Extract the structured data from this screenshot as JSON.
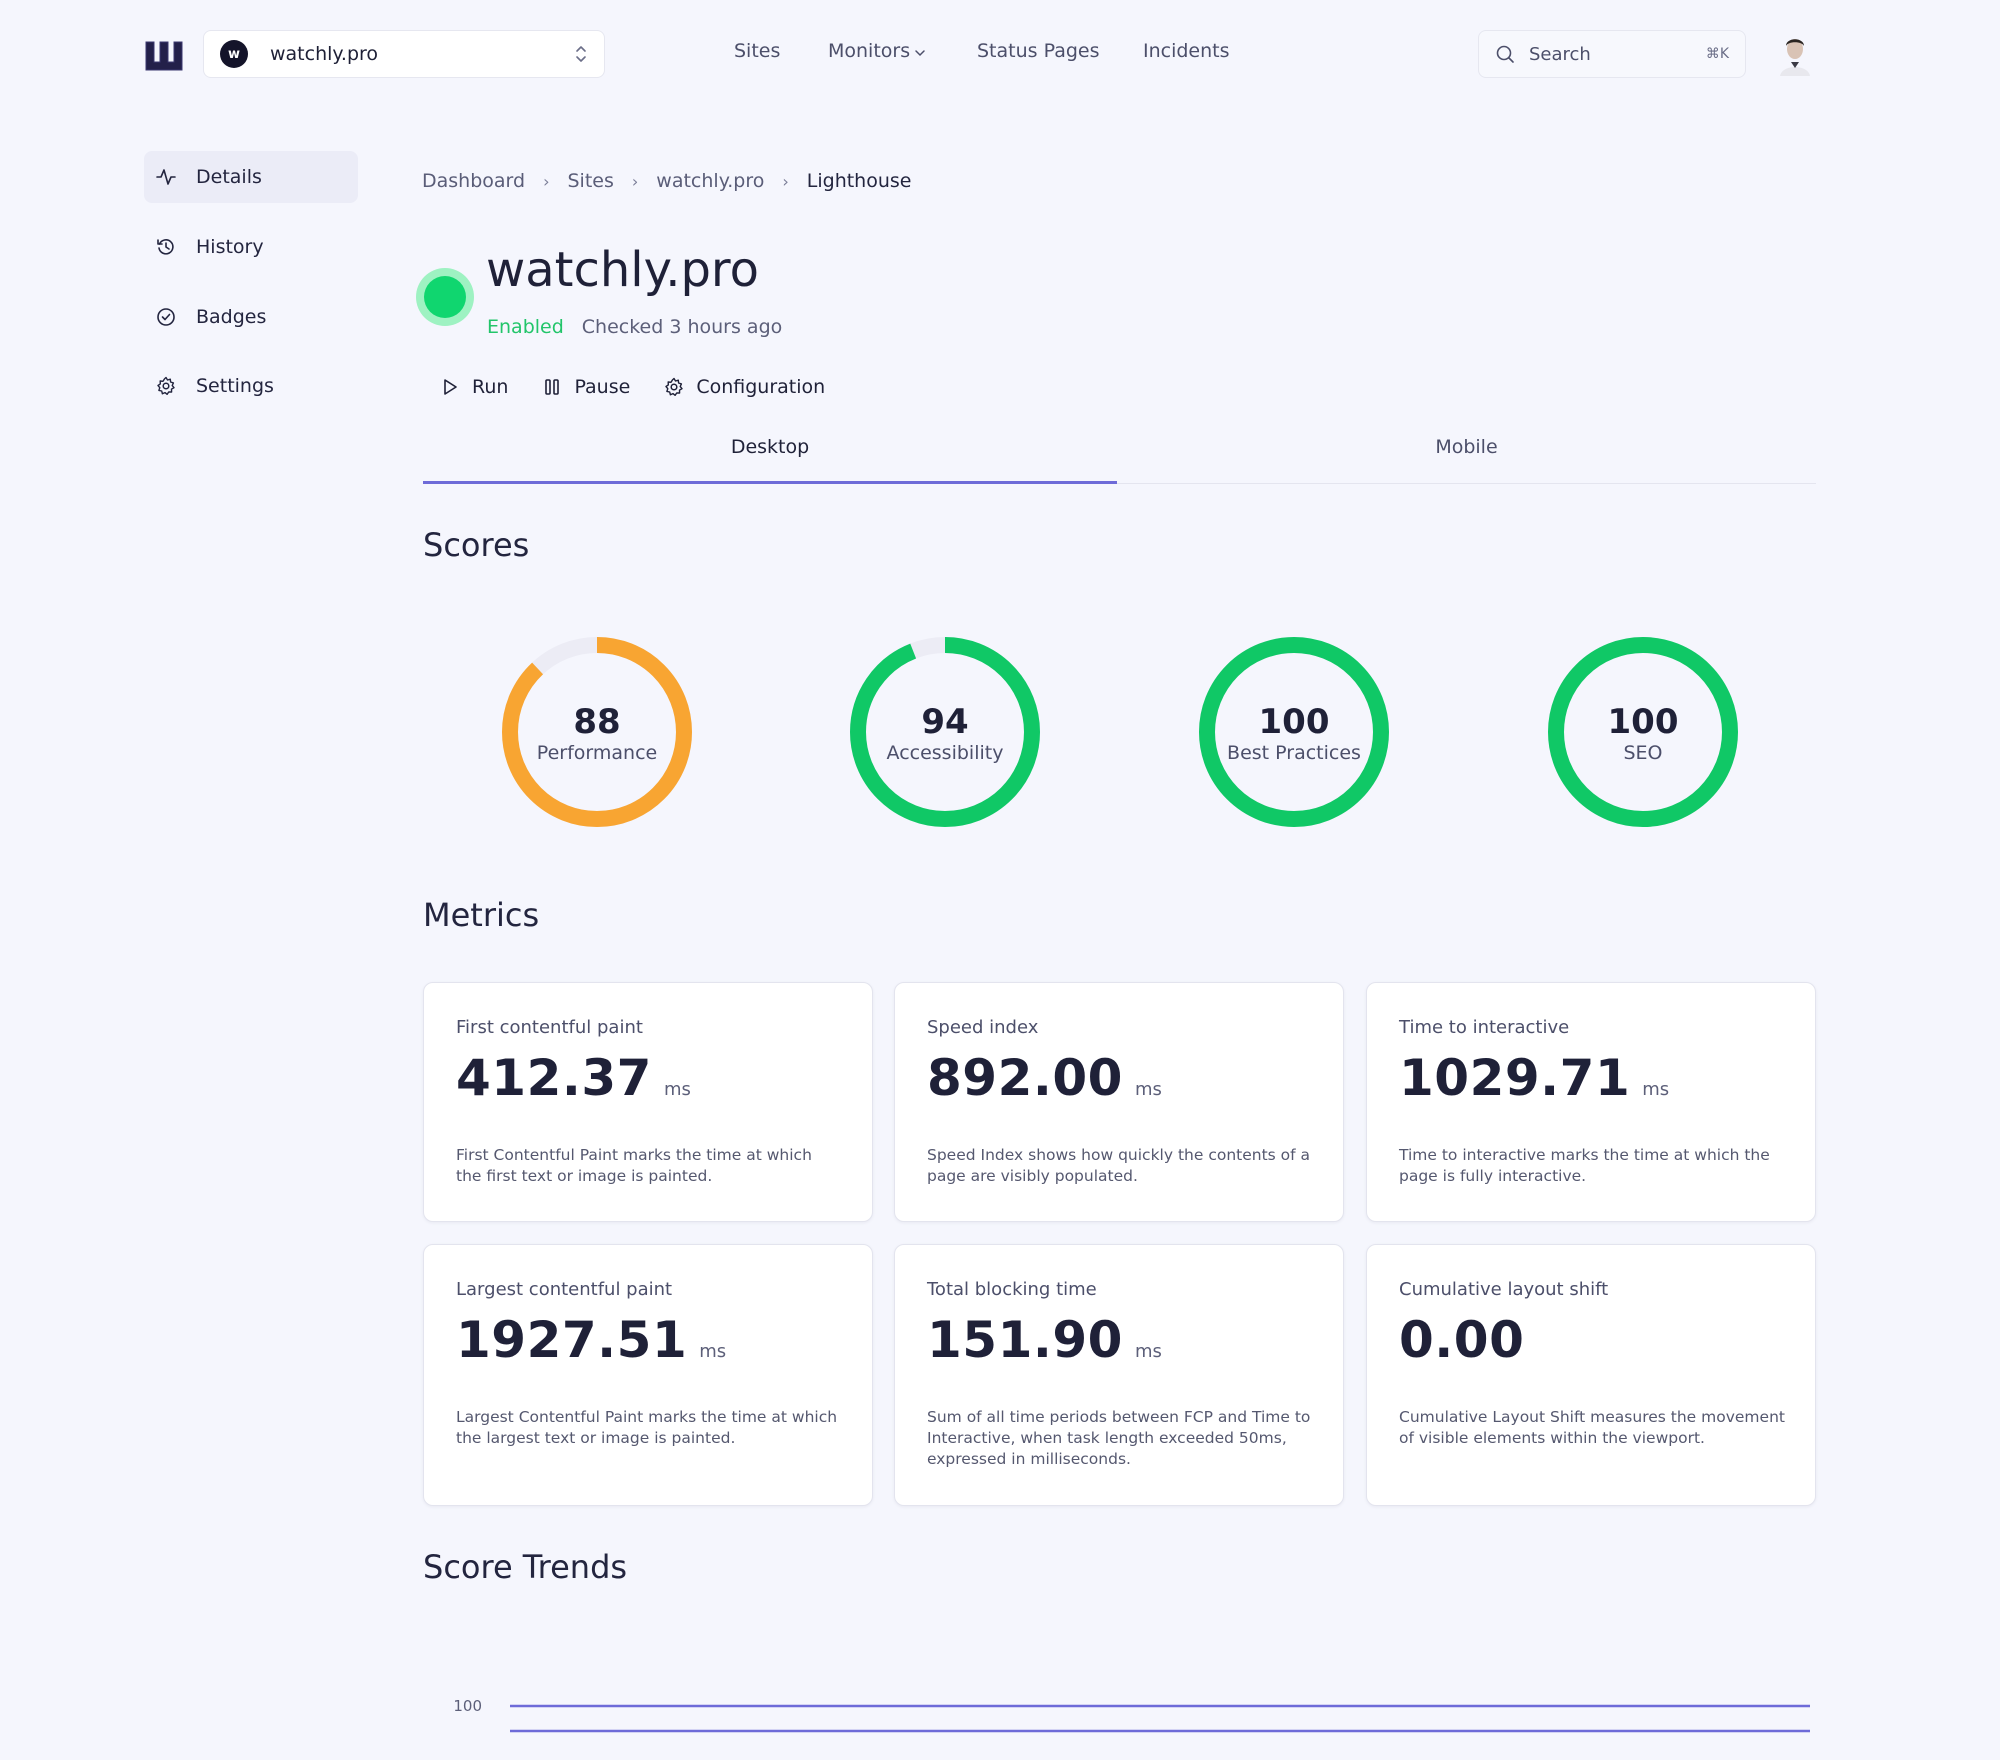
{
  "topbar": {
    "site_badge": "w",
    "site_name": "watchly.pro",
    "nav": [
      "Sites",
      "Monitors",
      "Status Pages",
      "Incidents"
    ],
    "search_label": "Search",
    "search_shortcut": "⌘K"
  },
  "sidebar": {
    "items": [
      {
        "label": "Details",
        "icon": "activity-icon"
      },
      {
        "label": "History",
        "icon": "history-icon"
      },
      {
        "label": "Badges",
        "icon": "check-circle-icon"
      },
      {
        "label": "Settings",
        "icon": "gear-icon"
      }
    ]
  },
  "breadcrumb": [
    "Dashboard",
    "Sites",
    "watchly.pro",
    "Lighthouse"
  ],
  "header": {
    "title": "watchly.pro",
    "status": "Enabled",
    "checked": "Checked 3 hours ago"
  },
  "actions": {
    "run": "Run",
    "pause": "Pause",
    "configuration": "Configuration"
  },
  "tabs": [
    "Desktop",
    "Mobile"
  ],
  "sections": {
    "scores": "Scores",
    "metrics": "Metrics",
    "trends": "Score Trends"
  },
  "scores": [
    {
      "value": "88",
      "label": "Performance",
      "fraction": 0.88,
      "color": "#f8a532"
    },
    {
      "value": "94",
      "label": "Accessibility",
      "fraction": 0.94,
      "color": "#10c866"
    },
    {
      "value": "100",
      "label": "Best Practices",
      "fraction": 1.0,
      "color": "#10c866"
    },
    {
      "value": "100",
      "label": "SEO",
      "fraction": 1.0,
      "color": "#10c866"
    }
  ],
  "metrics": [
    {
      "label": "First contentful paint",
      "value": "412.37",
      "unit": "ms",
      "desc": "First Contentful Paint marks the time at which the first text or image is painted."
    },
    {
      "label": "Speed index",
      "value": "892.00",
      "unit": "ms",
      "desc": "Speed Index shows how quickly the contents of a page are visibly populated."
    },
    {
      "label": "Time to interactive",
      "value": "1029.71",
      "unit": "ms",
      "desc": "Time to interactive marks the time at which the page is fully interactive."
    },
    {
      "label": "Largest contentful paint",
      "value": "1927.51",
      "unit": "ms",
      "desc": "Largest Contentful Paint marks the time at which the largest text or image is painted."
    },
    {
      "label": "Total blocking time",
      "value": "151.90",
      "unit": "ms",
      "desc": "Sum of all time periods between FCP and Time to Interactive, when task length exceeded 50ms, expressed in milliseconds."
    },
    {
      "label": "Cumulative layout shift",
      "value": "0.00",
      "unit": "",
      "desc": "Cumulative Layout Shift measures the movement of visible elements within the viewport."
    }
  ],
  "colors": {
    "accent": "#6e6bd8",
    "success": "#10c866",
    "warning": "#f8a532"
  },
  "chart_data": {
    "type": "line",
    "title": "Score Trends",
    "y_tick_labels": [
      "100"
    ],
    "series": [
      {
        "values": [
          100,
          100
        ]
      },
      {
        "values": [
          100,
          100
        ]
      }
    ]
  }
}
